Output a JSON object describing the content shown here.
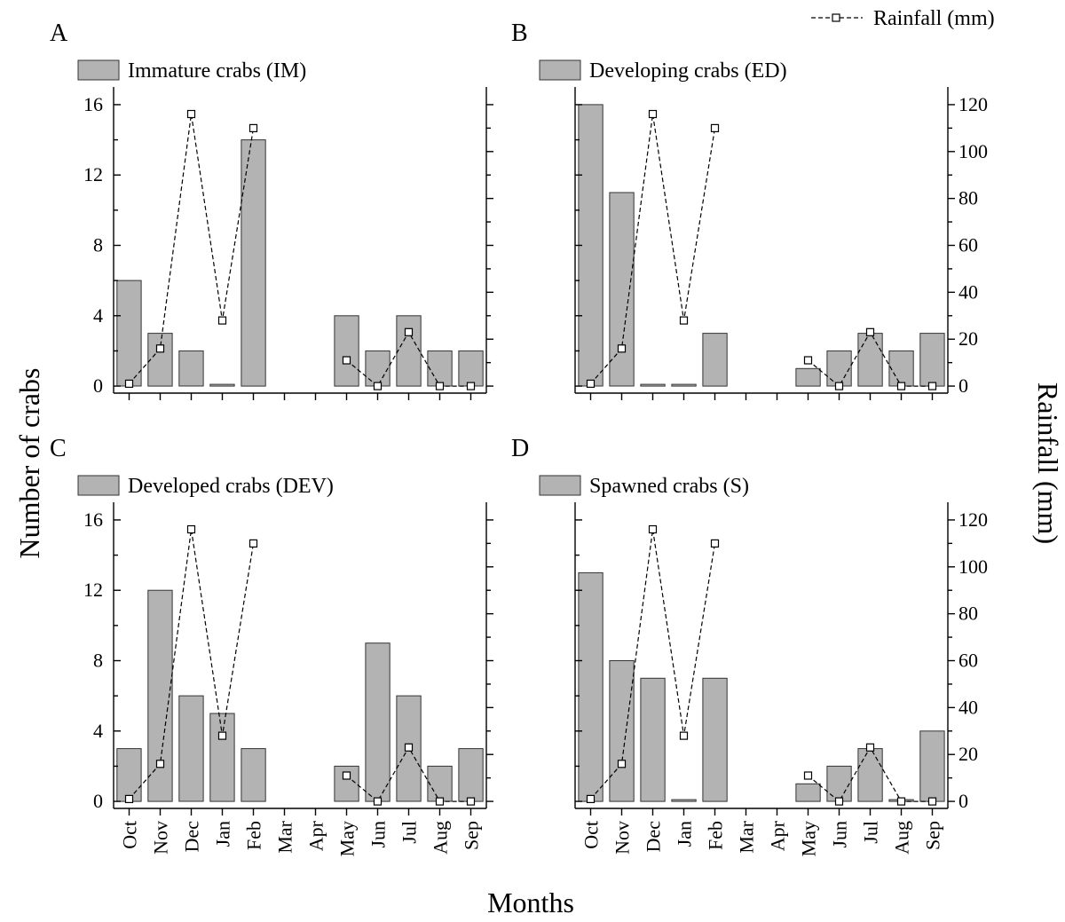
{
  "chart_data": {
    "type": "bar",
    "months": [
      "Oct",
      "Nov",
      "Dec",
      "Jan",
      "Feb",
      "Mar",
      "Apr",
      "May",
      "Jun",
      "Jul",
      "Aug",
      "Sep"
    ],
    "y_ticks": [
      0,
      4,
      8,
      12,
      16
    ],
    "y2_ticks": [
      0,
      20,
      40,
      60,
      80,
      100,
      120
    ],
    "ylim": [
      -0.4,
      16.4
    ],
    "y2lim": [
      -3,
      123
    ],
    "ylabel": "Number of crabs",
    "y2label": "Rainfall (mm)",
    "xlabel": "Months",
    "rainfall_legend": "Rainfall (mm)",
    "rainfall": [
      1,
      16,
      116,
      28,
      110,
      null,
      null,
      11,
      0,
      23,
      0,
      0
    ],
    "panels": [
      {
        "letter": "A",
        "legend": "Immature crabs (IM)",
        "values": [
          6,
          3,
          2,
          0,
          14,
          null,
          null,
          4,
          2,
          4,
          2,
          2
        ]
      },
      {
        "letter": "B",
        "legend": "Developing crabs (ED)",
        "values": [
          16,
          11,
          0,
          0,
          3,
          null,
          null,
          1,
          2,
          3,
          2,
          3
        ]
      },
      {
        "letter": "C",
        "legend": "Developed crabs (DEV)",
        "values": [
          3,
          12,
          6,
          5,
          3,
          null,
          null,
          2,
          9,
          6,
          2,
          3
        ]
      },
      {
        "letter": "D",
        "legend": "Spawned crabs (S)",
        "values": [
          13,
          8,
          7,
          0,
          7,
          null,
          null,
          1,
          2,
          3,
          0,
          4
        ]
      }
    ]
  }
}
